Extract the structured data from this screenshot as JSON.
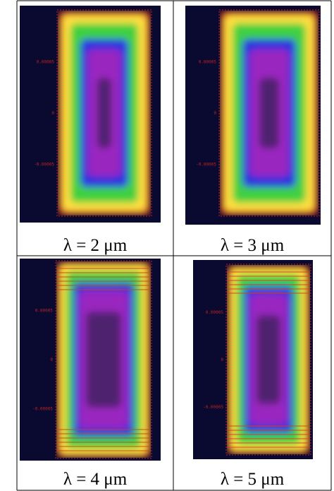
{
  "panels": [
    {
      "caption": "λ = 2 μm",
      "ticks": [
        "0.00005",
        "0",
        "-0.00005"
      ]
    },
    {
      "caption": "λ = 3 μm",
      "ticks": [
        "0.00005",
        "0",
        "-0.00005"
      ]
    },
    {
      "caption": "λ = 4 μm",
      "ticks": [
        "0.00005",
        "0",
        "-0.00005"
      ]
    },
    {
      "caption": "λ = 5 μm",
      "ticks": [
        "0.00005",
        "0",
        "-0.00005"
      ]
    }
  ]
}
